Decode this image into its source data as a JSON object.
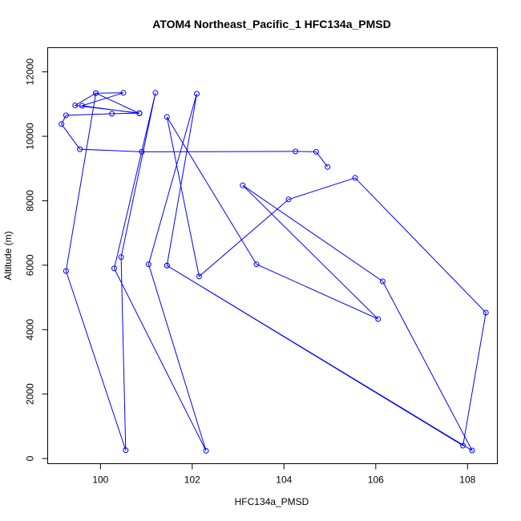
{
  "chart_data": {
    "type": "line",
    "title": "ATOM4 Northeast_Pacific_1 HFC134a_PMSD",
    "xlabel": "HFC134a_PMSD",
    "ylabel": "Altitude (m)",
    "xlim": [
      98.85,
      108.65
    ],
    "ylim": [
      -160,
      12750
    ],
    "xticks": [
      100,
      102,
      104,
      106,
      108
    ],
    "yticks": [
      0,
      2000,
      4000,
      6000,
      8000,
      10000,
      12000
    ],
    "grid": false,
    "color": "#0000ff",
    "markers": "open-circle",
    "series": [
      {
        "points": [
          [
            104.95,
            9050
          ],
          [
            104.7,
            9520
          ],
          [
            104.25,
            9530
          ],
          [
            100.9,
            9520
          ],
          [
            99.55,
            9600
          ],
          [
            99.15,
            10380
          ],
          [
            99.25,
            10650
          ],
          [
            100.25,
            10700
          ],
          [
            100.85,
            10720
          ],
          [
            99.45,
            10960
          ],
          [
            99.9,
            11340
          ],
          [
            100.5,
            11350
          ],
          [
            99.6,
            10950
          ],
          [
            100.85,
            10710
          ],
          [
            99.9,
            11340
          ],
          [
            99.25,
            5820
          ],
          [
            100.55,
            260
          ],
          [
            100.45,
            6250
          ],
          [
            101.2,
            11350
          ],
          [
            100.3,
            5900
          ],
          [
            102.3,
            240
          ],
          [
            101.05,
            6030
          ],
          [
            102.1,
            11320
          ],
          [
            101.45,
            5990
          ],
          [
            108.1,
            250
          ],
          [
            106.15,
            5500
          ],
          [
            103.1,
            8480
          ],
          [
            106.05,
            4330
          ],
          [
            103.4,
            6030
          ],
          [
            101.45,
            10600
          ],
          [
            102.15,
            5650
          ],
          [
            104.1,
            8040
          ],
          [
            105.55,
            8710
          ],
          [
            108.4,
            4530
          ],
          [
            107.9,
            400
          ],
          [
            101.45,
            5990
          ]
        ]
      }
    ]
  }
}
